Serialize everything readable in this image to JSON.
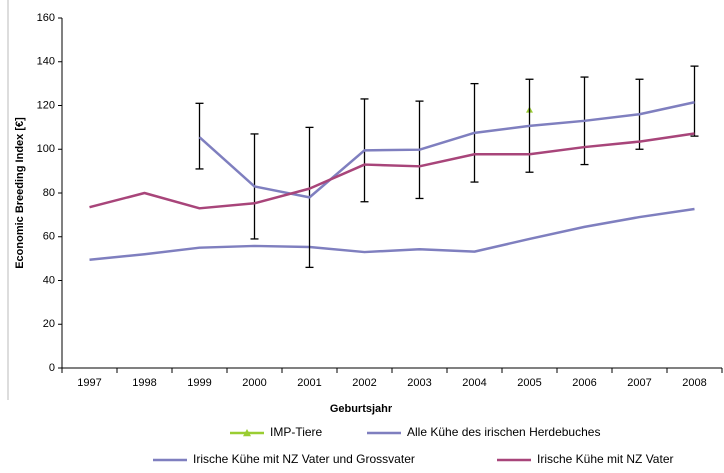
{
  "chart_data": {
    "type": "line",
    "x_label": "Geburtsjahr",
    "y_label": "Economic Breeding Index [€]",
    "categories": [
      "1997",
      "1998",
      "1999",
      "2000",
      "2001",
      "2002",
      "2003",
      "2004",
      "2005",
      "2006",
      "2007",
      "2008"
    ],
    "ylim": [
      0,
      160
    ],
    "yticks": [
      0,
      20,
      40,
      60,
      80,
      100,
      120,
      140,
      160
    ],
    "series": [
      {
        "name": "IMP-Tiere",
        "color": "#9acd32",
        "marker": "triangle",
        "values": [
          null,
          null,
          null,
          null,
          null,
          null,
          null,
          null,
          118,
          null,
          null,
          null
        ]
      },
      {
        "name": "Alle Kühe des irischen Herdebuches",
        "color": "#7f7fbf",
        "values": [
          49.5,
          52,
          55,
          55.8,
          55.3,
          53,
          54.3,
          53.2,
          59,
          64.5,
          69,
          72.7
        ]
      },
      {
        "name": "Irische Kühe mit NZ Vater und Grossvater",
        "color": "#7f7fbf",
        "values": [
          null,
          null,
          105.5,
          83,
          78,
          99.5,
          99.8,
          107.5,
          110.7,
          113,
          116,
          121.5
        ],
        "error_low": [
          null,
          null,
          91,
          59,
          46,
          76,
          77.5,
          85,
          89.5,
          93,
          100,
          106
        ],
        "error_high": [
          null,
          null,
          121,
          107,
          110,
          123,
          122,
          130,
          132,
          133,
          132,
          138
        ]
      },
      {
        "name": "Irische Kühe mit NZ Vater",
        "color": "#a8457a",
        "values": [
          73.5,
          80,
          73,
          75.3,
          82,
          93,
          92.2,
          97.7,
          97.7,
          101,
          103.5,
          107.2
        ]
      }
    ]
  }
}
